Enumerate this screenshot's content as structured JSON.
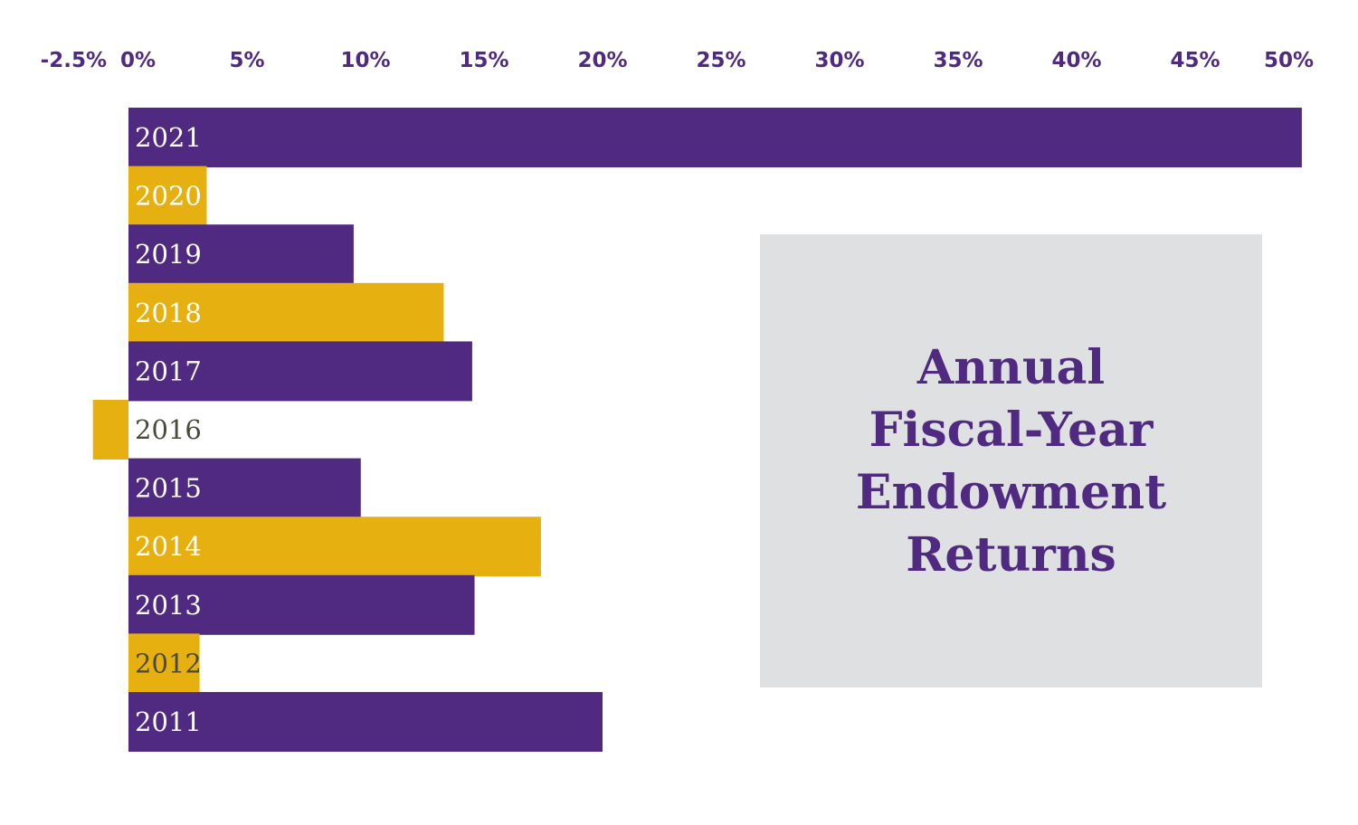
{
  "colors": {
    "purple": "#4f2a80",
    "gold": "#e6b010",
    "title_box_bg": "#dfe0e2",
    "outside_label": "#4a4a3a"
  },
  "title_lines": [
    "Annual",
    "Fiscal-Year",
    "Endowment",
    "Returns"
  ],
  "chart_data": {
    "type": "bar",
    "orientation": "horizontal",
    "title": "Annual Fiscal-Year Endowment Returns",
    "xlabel": "",
    "ylabel": "",
    "x_tick_labels": [
      "-2.5%",
      "0%",
      "5%",
      "10%",
      "15%",
      "20%",
      "25%",
      "30%",
      "35%",
      "40%",
      "45%",
      "50%"
    ],
    "xlim": [
      -2.5,
      50
    ],
    "grid": false,
    "legend": "none",
    "categories": [
      "2021",
      "2020",
      "2019",
      "2018",
      "2017",
      "2016",
      "2015",
      "2014",
      "2013",
      "2012",
      "2011"
    ],
    "values": [
      49.5,
      3.3,
      9.5,
      13.3,
      14.5,
      -1.5,
      9.8,
      17.4,
      14.6,
      3.0,
      20.0
    ],
    "bar_colors": [
      "purple",
      "gold",
      "purple",
      "gold",
      "purple",
      "gold",
      "purple",
      "gold",
      "purple",
      "gold",
      "purple"
    ]
  }
}
